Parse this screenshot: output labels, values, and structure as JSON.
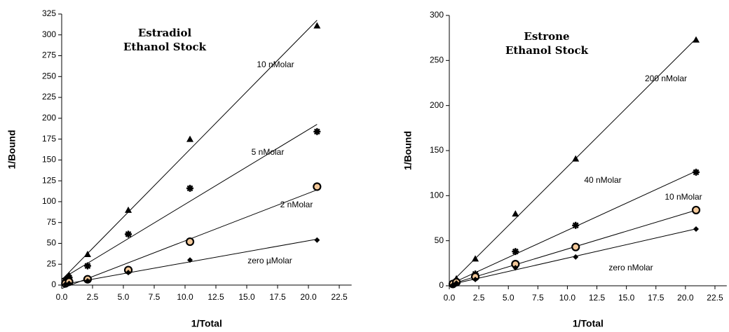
{
  "chart_data": [
    {
      "type": "scatter",
      "title": [
        "Estradiol",
        "Ethanol Stock"
      ],
      "x_label": "1/Total",
      "y_label": "1/Bound",
      "x": [
        0.3,
        0.6,
        2.1,
        5.4,
        10.4,
        20.7
      ],
      "xlim": [
        0,
        23.5
      ],
      "xticks": [
        {
          "value": 0,
          "label": "0.0"
        },
        2.5,
        {
          "value": 5,
          "label": "5.0"
        },
        7.5,
        {
          "value": 10,
          "label": "10.0"
        },
        12.5,
        {
          "value": 15,
          "label": "15.0"
        },
        17.5,
        {
          "value": 20,
          "label": "20.0"
        },
        22.5
      ],
      "ylim": [
        0,
        325
      ],
      "yticks": [
        0,
        25,
        50,
        75,
        100,
        125,
        150,
        175,
        200,
        225,
        250,
        275,
        300,
        325
      ],
      "series": [
        {
          "name": "10 nMolar",
          "color": "#000000",
          "marker": "triangle",
          "values": [
            7,
            12,
            37,
            90,
            175,
            311
          ]
        },
        {
          "name": "5 nMolar",
          "color": "#000000",
          "marker": "star",
          "values": [
            5,
            9,
            23,
            61,
            116,
            184
          ]
        },
        {
          "name": "2 nMolar",
          "color": "#000000",
          "marker": "circle",
          "values": [
            2,
            4,
            7,
            18,
            52,
            118
          ]
        },
        {
          "name": "zero µMolar",
          "color": "#000000",
          "marker": "diamond",
          "values": [
            1,
            2,
            5,
            15,
            30,
            54
          ]
        }
      ]
    },
    {
      "type": "scatter",
      "title": [
        "Estrone",
        "Ethanol Stock"
      ],
      "x_label": "1/Total",
      "y_label": "1/Bound",
      "x": [
        0.3,
        0.6,
        2.2,
        5.6,
        10.7,
        20.9
      ],
      "xlim": [
        0,
        23.5
      ],
      "xticks": [
        {
          "value": 0,
          "label": "0.0"
        },
        2.5,
        {
          "value": 5,
          "label": "5.0"
        },
        7.5,
        {
          "value": 10,
          "label": "10.0"
        },
        12.5,
        {
          "value": 15,
          "label": "15.0"
        },
        17.5,
        {
          "value": 20,
          "label": "20.0"
        },
        22.5
      ],
      "ylim": [
        0,
        300
      ],
      "yticks": [
        0,
        50,
        100,
        150,
        200,
        250,
        300
      ],
      "series": [
        {
          "name": "200 nMolar",
          "color": "#000000",
          "marker": "triangle",
          "values": [
            3,
            8,
            30,
            80,
            141,
            273
          ]
        },
        {
          "name": "40 nMolar",
          "color": "#000000",
          "marker": "star",
          "values": [
            2,
            5,
            13,
            38,
            67,
            126
          ]
        },
        {
          "name": "10 nMolar",
          "color": "#000000",
          "marker": "circle",
          "values": [
            2,
            4,
            10,
            24,
            43,
            84
          ]
        },
        {
          "name": "zero nMolar",
          "color": "#000000",
          "marker": "diamond",
          "values": [
            1,
            3,
            7,
            20,
            32,
            63
          ]
        }
      ]
    }
  ]
}
